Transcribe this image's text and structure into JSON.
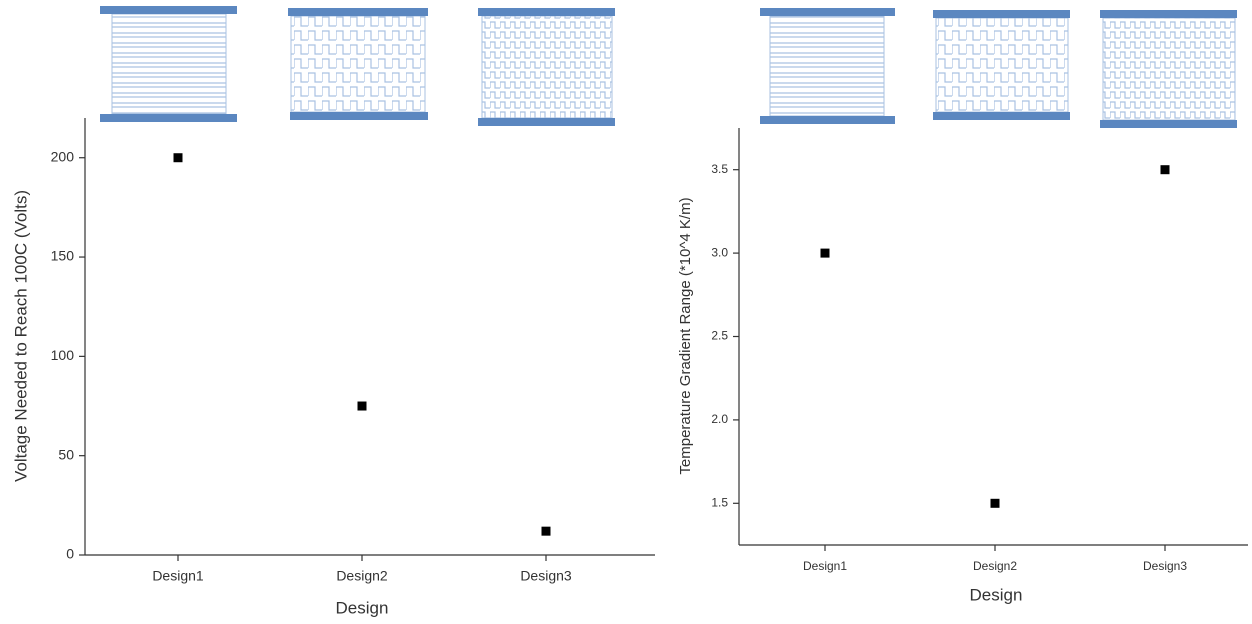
{
  "chart_data": [
    {
      "type": "scatter",
      "x_label": "Design",
      "y_label": "Voltage Needed to Reach 100C (Volts)",
      "categories": [
        "Design1",
        "Design2",
        "Design3"
      ],
      "values": [
        200,
        75,
        12
      ],
      "color": "#000000",
      "ylim": [
        0,
        220
      ],
      "yticks": [
        0,
        50,
        100,
        150,
        200
      ]
    },
    {
      "type": "scatter",
      "x_label": "Design",
      "y_label": "Temperature Gradient Range (*10^4 K/m)",
      "categories": [
        "Design1",
        "Design2",
        "Design3"
      ],
      "values": [
        3.0,
        1.5,
        3.5
      ],
      "color": "#000000",
      "ylim": [
        1.25,
        3.75
      ],
      "yticks": [
        1.5,
        {
          "value": 2,
          "label": "2.0"
        },
        2.5,
        {
          "value": 3,
          "label": "3.0"
        },
        3.5
      ]
    }
  ]
}
